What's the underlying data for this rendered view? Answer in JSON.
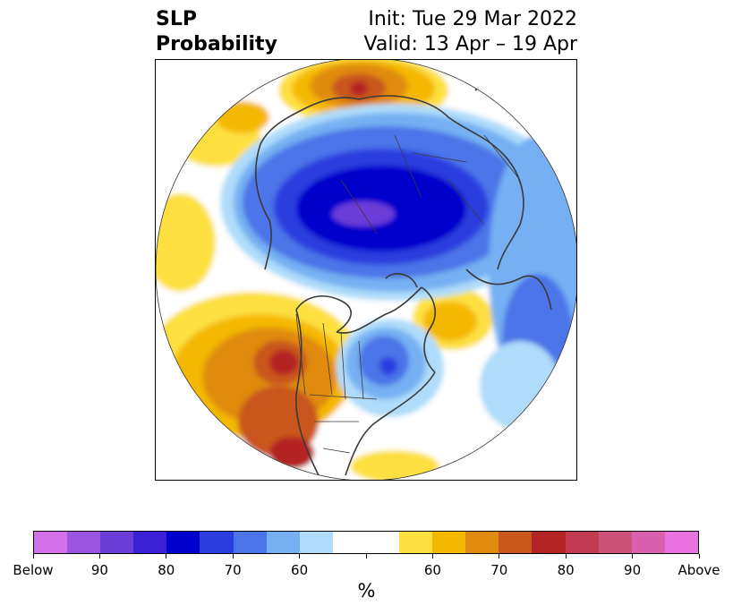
{
  "title": {
    "left_line1": "SLP",
    "left_line2": "Probability",
    "right_line1": "Init: Tue 29 Mar 2022",
    "right_line2": "Valid: 13 Apr – 19 Apr"
  },
  "colorbar": {
    "label": "%",
    "colors": [
      "#d471e8",
      "#9b55e3",
      "#6c3ed9",
      "#3b20d6",
      "#0000cc",
      "#2a3ddf",
      "#4b74e8",
      "#76b0f2",
      "#aedcfa",
      "#ffffff",
      "#ffffff",
      "#fde040",
      "#f4b800",
      "#e08b10",
      "#c9561a",
      "#b42424",
      "#c23a52",
      "#cc527a",
      "#da5fae",
      "#e873e0"
    ],
    "ticks": [
      "Below",
      "90",
      "80",
      "70",
      "60",
      "",
      "60",
      "70",
      "80",
      "90",
      "Above"
    ]
  },
  "map": {
    "projection": "north polar stereographic",
    "variable": "sea level pressure probability"
  }
}
